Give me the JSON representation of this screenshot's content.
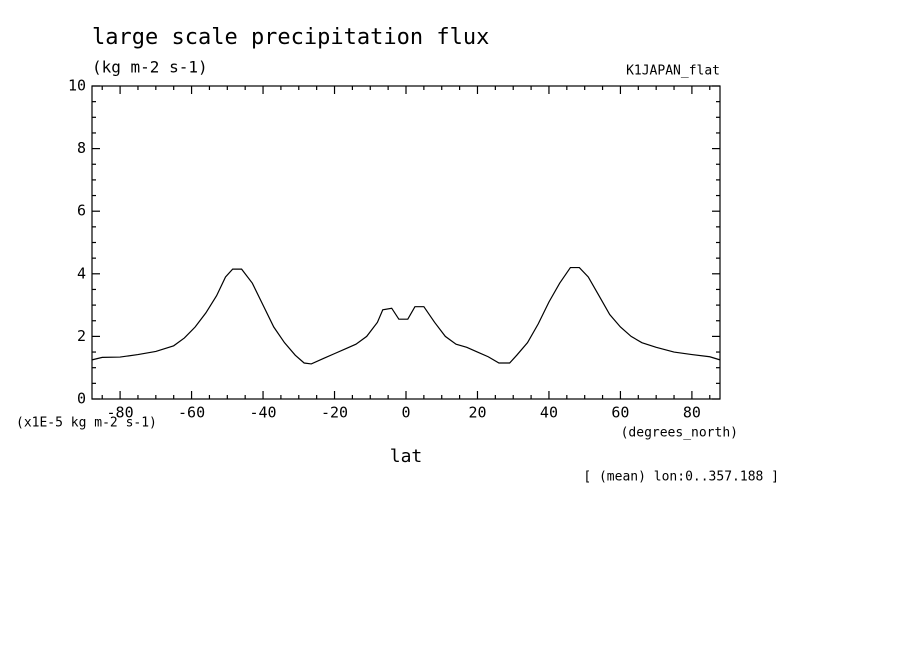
{
  "chart_data": {
    "type": "line",
    "title": "large scale precipitation flux",
    "units": "(kg m-2 s-1)",
    "dataset": "K1JAPAN_flat",
    "y_units": "(x1E-5 kg m-2 s-1)",
    "x_label": "lat",
    "x_units": "(degrees_north)",
    "note": "[ (mean) lon:0..357.188 ]",
    "x": [
      -87.86,
      -85,
      -80,
      -75,
      -70,
      -65,
      -62,
      -59,
      -56,
      -53,
      -50.5,
      -48.5,
      -46,
      -43,
      -40,
      -37,
      -34,
      -31,
      -28.5,
      -26.5,
      -23,
      -20,
      -17,
      -14,
      -11,
      -8,
      -6.5,
      -4,
      -2,
      0.5,
      2.5,
      5,
      8,
      11,
      14,
      17,
      20,
      23,
      26,
      29,
      31,
      34,
      37,
      40,
      43,
      46,
      48.5,
      51,
      54,
      57,
      60,
      63,
      66,
      70,
      75,
      80,
      85,
      87.86
    ],
    "series": [
      {
        "color": "#000000",
        "values": [
          1.25,
          1.33,
          1.34,
          1.42,
          1.52,
          1.7,
          1.95,
          2.3,
          2.75,
          3.3,
          3.9,
          4.15,
          4.15,
          3.7,
          3.0,
          2.3,
          1.8,
          1.4,
          1.15,
          1.12,
          1.3,
          1.45,
          1.6,
          1.75,
          2.0,
          2.45,
          2.85,
          2.9,
          2.55,
          2.55,
          2.95,
          2.95,
          2.45,
          2.0,
          1.75,
          1.65,
          1.5,
          1.35,
          1.15,
          1.15,
          1.4,
          1.8,
          2.4,
          3.1,
          3.7,
          4.2,
          4.2,
          3.9,
          3.3,
          2.7,
          2.3,
          2.0,
          1.8,
          1.65,
          1.5,
          1.42,
          1.35,
          1.25
        ]
      }
    ],
    "xlim": [
      -87.86,
      87.86
    ],
    "ylim": [
      0,
      10
    ],
    "xticks": [
      -80,
      -60,
      -40,
      -20,
      0,
      20,
      40,
      60,
      80
    ],
    "yticks": [
      0,
      2,
      4,
      6,
      8,
      10
    ],
    "xticks_minor": [
      -85,
      -75,
      -70,
      -65,
      -55,
      -50,
      -45,
      -35,
      -30,
      -25,
      -15,
      -10,
      -5,
      5,
      10,
      15,
      25,
      30,
      35,
      45,
      50,
      55,
      65,
      70,
      75,
      85
    ],
    "yticks_minor": [
      0.5,
      1,
      1.5,
      2.5,
      3,
      3.5,
      4.5,
      5,
      5.5,
      6.5,
      7,
      7.5,
      8.5,
      9,
      9.5
    ]
  }
}
